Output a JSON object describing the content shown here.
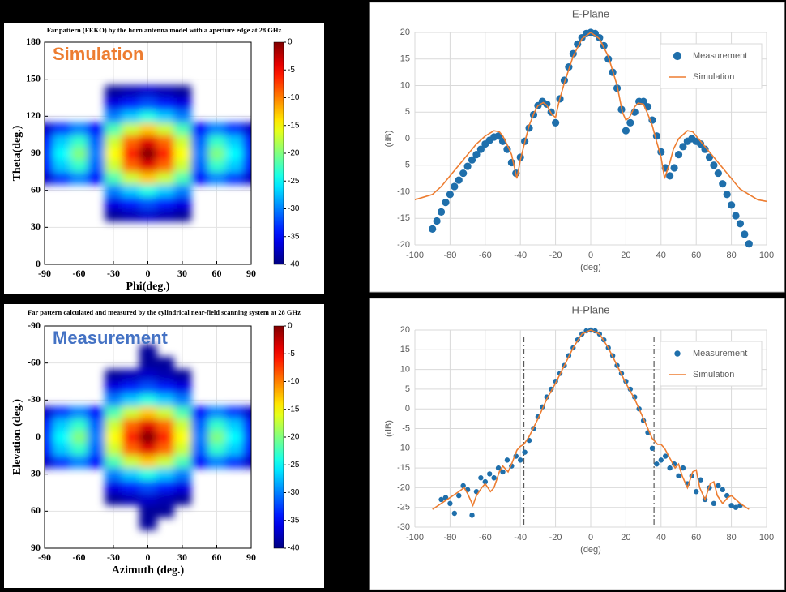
{
  "chart_data": [
    {
      "type": "heatmap",
      "title": "Far pattern (FEKO) by  the horn antenna model with a aperture edge at 28 GHz",
      "annotation": {
        "text": "Simulation",
        "color": "#ed7d31"
      },
      "xlabel": "Phi(deg.)",
      "ylabel": "Theta(deg.)",
      "x": [
        -90,
        -75,
        -60,
        -45,
        -30,
        -15,
        0,
        15,
        30,
        45,
        60,
        75,
        90
      ],
      "y": [
        30,
        40,
        50,
        60,
        70,
        80,
        90,
        100,
        110,
        120,
        130,
        140,
        150
      ],
      "z": [
        [
          null,
          null,
          null,
          null,
          null,
          null,
          null,
          null,
          null,
          null,
          null,
          null,
          null
        ],
        [
          null,
          null,
          null,
          null,
          -39,
          -38,
          -37,
          -38,
          -39,
          null,
          null,
          null,
          null
        ],
        [
          null,
          null,
          null,
          null,
          -36,
          -34,
          -32,
          -34,
          -36,
          null,
          null,
          null,
          null
        ],
        [
          null,
          null,
          null,
          null,
          -30,
          -27,
          -24,
          -27,
          -30,
          null,
          null,
          null,
          null
        ],
        [
          -37,
          -33,
          -30,
          -35,
          -22,
          -17,
          -13,
          -17,
          -22,
          -35,
          -30,
          -33,
          -37
        ],
        [
          -34,
          -27,
          -23,
          -31,
          -17,
          -9,
          -4,
          -9,
          -17,
          -31,
          -23,
          -27,
          -34
        ],
        [
          -33,
          -25,
          -20,
          -30,
          -15,
          -6,
          0,
          -6,
          -15,
          -30,
          -20,
          -25,
          -33
        ],
        [
          -34,
          -27,
          -23,
          -31,
          -17,
          -9,
          -4,
          -9,
          -17,
          -31,
          -23,
          -27,
          -34
        ],
        [
          -37,
          -33,
          -30,
          -35,
          -22,
          -17,
          -13,
          -17,
          -22,
          -35,
          -30,
          -33,
          -37
        ],
        [
          null,
          null,
          null,
          null,
          -30,
          -27,
          -24,
          -27,
          -30,
          null,
          null,
          null,
          null
        ],
        [
          null,
          null,
          null,
          null,
          -36,
          -34,
          -32,
          -34,
          -36,
          null,
          null,
          null,
          null
        ],
        [
          null,
          null,
          null,
          null,
          -39,
          -38,
          -37,
          -38,
          -39,
          null,
          null,
          null,
          null
        ],
        [
          null,
          null,
          null,
          null,
          null,
          null,
          null,
          null,
          null,
          null,
          null,
          null,
          null
        ]
      ],
      "xlim": [
        -90,
        90
      ],
      "ylim": [
        0,
        180
      ],
      "xticks": [
        -90,
        -60,
        -30,
        0,
        30,
        60,
        90
      ],
      "yticks": [
        0,
        30,
        60,
        90,
        120,
        150,
        180
      ],
      "zlim": [
        -40,
        0
      ],
      "colorbar_ticks": [
        0,
        -5,
        -10,
        -15,
        -20,
        -25,
        -30,
        -35,
        -40
      ],
      "colormap": "jet",
      "grid": true
    },
    {
      "type": "heatmap",
      "title": "Far pattern calculated and measured by the cylindrical near-field scanning system at 28 GHz",
      "annotation": {
        "text": "Measurement",
        "color": "#4472c4"
      },
      "xlabel": "Azimuth (deg.)",
      "ylabel": "Elevation (deg.)",
      "x": [
        -90,
        -75,
        -60,
        -45,
        -30,
        -15,
        0,
        15,
        30,
        45,
        60,
        75,
        90
      ],
      "y": [
        -80,
        -70,
        -60,
        -50,
        -40,
        -30,
        -20,
        -10,
        0,
        10,
        20,
        30,
        40,
        50,
        60,
        70,
        80
      ],
      "z": [
        [
          null,
          null,
          null,
          null,
          null,
          null,
          null,
          null,
          null,
          null,
          null,
          null,
          null
        ],
        [
          null,
          null,
          null,
          null,
          null,
          null,
          -39,
          null,
          null,
          null,
          null,
          null,
          null
        ],
        [
          null,
          null,
          null,
          null,
          null,
          null,
          -39,
          -39,
          null,
          null,
          null,
          null,
          null
        ],
        [
          null,
          null,
          null,
          null,
          -39,
          -38,
          -37,
          -38,
          -39,
          null,
          null,
          null,
          null
        ],
        [
          null,
          null,
          null,
          null,
          -36,
          -34,
          -32,
          -34,
          -36,
          null,
          null,
          null,
          null
        ],
        [
          null,
          null,
          null,
          null,
          -30,
          -27,
          -24,
          -27,
          -30,
          null,
          null,
          null,
          null
        ],
        [
          -37,
          -33,
          -30,
          -35,
          -22,
          -17,
          -13,
          -17,
          -22,
          -35,
          -30,
          -33,
          -37
        ],
        [
          -34,
          -27,
          -23,
          -31,
          -17,
          -9,
          -4,
          -9,
          -17,
          -31,
          -23,
          -27,
          -34
        ],
        [
          -33,
          -25,
          -20,
          -30,
          -15,
          -6,
          0,
          -6,
          -15,
          -30,
          -20,
          -25,
          -33
        ],
        [
          -34,
          -27,
          -23,
          -31,
          -17,
          -9,
          -4,
          -9,
          -17,
          -31,
          -23,
          -27,
          -34
        ],
        [
          -37,
          -33,
          -30,
          -35,
          -22,
          -17,
          -13,
          -17,
          -22,
          -35,
          -30,
          -33,
          -37
        ],
        [
          null,
          null,
          null,
          null,
          -30,
          -27,
          -24,
          -27,
          -30,
          null,
          null,
          null,
          null
        ],
        [
          null,
          null,
          null,
          null,
          -36,
          -34,
          -32,
          -34,
          -36,
          null,
          null,
          null,
          null
        ],
        [
          null,
          null,
          null,
          null,
          -39,
          -38,
          -37,
          -38,
          -39,
          null,
          null,
          null,
          null
        ],
        [
          null,
          null,
          null,
          null,
          null,
          null,
          -39,
          -39,
          null,
          null,
          null,
          null,
          null
        ],
        [
          null,
          null,
          null,
          null,
          null,
          null,
          -39,
          null,
          null,
          null,
          null,
          null,
          null
        ],
        [
          null,
          null,
          null,
          null,
          null,
          null,
          null,
          null,
          null,
          null,
          null,
          null,
          null
        ]
      ],
      "xlim": [
        -90,
        90
      ],
      "ylim": [
        90,
        -90
      ],
      "xticks": [
        -90,
        -60,
        -30,
        0,
        30,
        60,
        90
      ],
      "yticks": [
        -90,
        -60,
        -30,
        0,
        30,
        60,
        90
      ],
      "zlim": [
        -40,
        0
      ],
      "colorbar_ticks": [
        0,
        -5,
        -10,
        -15,
        -20,
        -25,
        -30,
        -35,
        -40
      ],
      "colormap": "jet",
      "grid": true
    },
    {
      "type": "line",
      "title": "E-Plane",
      "xlabel": "(deg)",
      "ylabel": "(dB)",
      "xlim": [
        -100,
        100
      ],
      "ylim": [
        -20,
        20
      ],
      "xticks": [
        -100,
        -80,
        -60,
        -40,
        -20,
        0,
        20,
        40,
        60,
        80,
        100
      ],
      "yticks": [
        -20,
        -15,
        -10,
        -5,
        0,
        5,
        10,
        15,
        20
      ],
      "grid": true,
      "legend": "upper right",
      "series": [
        {
          "name": "Measurement",
          "color": "#1f6fab",
          "style": "markers",
          "x": [
            -90,
            -87.5,
            -85,
            -82.5,
            -80,
            -77.5,
            -75,
            -72.5,
            -70,
            -67.5,
            -65,
            -62.5,
            -60,
            -57.5,
            -55,
            -52.5,
            -50,
            -47.5,
            -45,
            -42.5,
            -40,
            -37.5,
            -35,
            -32.5,
            -30,
            -27.5,
            -25,
            -22.5,
            -20,
            -17.5,
            -15,
            -12.5,
            -10,
            -7.5,
            -5,
            -2.5,
            0,
            2.5,
            5,
            7.5,
            10,
            12.5,
            15,
            17.5,
            20,
            22.5,
            25,
            27.5,
            30,
            32.5,
            35,
            37.5,
            40,
            42.5,
            45,
            47.5,
            50,
            52.5,
            55,
            57.5,
            60,
            62.5,
            65,
            67.5,
            70,
            72.5,
            75,
            77.5,
            80,
            82.5,
            85,
            87.5,
            90
          ],
          "values": [
            -17,
            -15.5,
            -13.8,
            -12,
            -10.5,
            -9,
            -7.8,
            -6.5,
            -5.2,
            -4,
            -3,
            -2,
            -1,
            -0.3,
            0.3,
            0.5,
            -0.5,
            -2,
            -4.5,
            -6.5,
            -3.5,
            -0.5,
            2,
            4.5,
            6.2,
            7,
            6.5,
            5,
            3,
            7.5,
            11,
            13.5,
            16,
            17.8,
            19,
            19.8,
            20,
            19.8,
            19,
            17.5,
            15,
            12.5,
            9.5,
            5.5,
            1.5,
            3,
            5,
            7,
            7,
            6,
            3.5,
            0.5,
            -2.5,
            -5.5,
            -7,
            -5.5,
            -3,
            -1.5,
            -0.5,
            0,
            -0.5,
            -1,
            -2,
            -3.5,
            -5,
            -6.5,
            -8.5,
            -10.5,
            -12.5,
            -14.5,
            -16,
            -18,
            -19.8
          ]
        },
        {
          "name": "Simulation",
          "color": "#ed7d31",
          "style": "line",
          "x": [
            -100,
            -95,
            -90,
            -85,
            -80,
            -75,
            -70,
            -65,
            -60,
            -55,
            -52,
            -50,
            -47,
            -45,
            -42,
            -40,
            -37,
            -35,
            -32,
            -30,
            -27,
            -25,
            -22,
            -20,
            -18,
            -15,
            -10,
            -5,
            0,
            5,
            10,
            15,
            18,
            20,
            22,
            25,
            27,
            30,
            32,
            35,
            37,
            40,
            42,
            45,
            47,
            50,
            55,
            58,
            60,
            65,
            70,
            75,
            80,
            85,
            90,
            95,
            100
          ],
          "values": [
            -11.5,
            -11,
            -10.5,
            -9,
            -7,
            -5,
            -3,
            -1,
            0.5,
            1.5,
            1.3,
            0.5,
            -1.5,
            -3,
            -7.5,
            -4,
            0,
            2.5,
            5,
            6.2,
            6.8,
            6.3,
            4.5,
            4,
            7,
            10.5,
            15.5,
            18.8,
            20,
            18.8,
            15.5,
            10,
            5,
            3.5,
            4,
            6,
            6.7,
            6.5,
            5,
            2.5,
            0,
            -3.5,
            -7.5,
            -4.5,
            -2,
            0,
            1.5,
            1.3,
            0.5,
            -1.5,
            -3.5,
            -5.5,
            -7.5,
            -9.5,
            -10.5,
            -11.5,
            -11.8
          ]
        }
      ]
    },
    {
      "type": "line",
      "title": "H-Plane",
      "xlabel": "(deg)",
      "ylabel": "(dB)",
      "xlim": [
        -100,
        100
      ],
      "ylim": [
        -30,
        20
      ],
      "xticks": [
        -100,
        -80,
        -60,
        -40,
        -20,
        0,
        20,
        40,
        60,
        80,
        100
      ],
      "yticks": [
        -30,
        -25,
        -20,
        -15,
        -10,
        -5,
        0,
        5,
        10,
        15,
        20
      ],
      "grid": true,
      "legend": "upper right",
      "vlines": [
        -38,
        36
      ],
      "series": [
        {
          "name": "Measurement",
          "color": "#1f6fab",
          "style": "markers",
          "x": [
            -85,
            -82.5,
            -80,
            -77.5,
            -75,
            -72.5,
            -70,
            -67.5,
            -65,
            -62.5,
            -60,
            -57.5,
            -55,
            -52.5,
            -50,
            -47.5,
            -45,
            -42.5,
            -40,
            -37.5,
            -35,
            -32.5,
            -30,
            -27.5,
            -25,
            -22.5,
            -20,
            -17.5,
            -15,
            -12.5,
            -10,
            -7.5,
            -5,
            -2.5,
            0,
            2.5,
            5,
            7.5,
            10,
            12.5,
            15,
            17.5,
            20,
            22.5,
            25,
            27.5,
            30,
            32.5,
            35,
            37.5,
            40,
            42.5,
            45,
            47.5,
            50,
            52.5,
            55,
            57.5,
            60,
            62.5,
            65,
            67.5,
            70,
            72.5,
            75,
            77.5,
            80,
            82.5,
            85
          ],
          "values": [
            -23,
            -22.5,
            -24,
            -26.5,
            -22,
            -19.5,
            -20.5,
            -27,
            -21,
            -17.5,
            -18.5,
            -16.5,
            -17.5,
            -15,
            -16,
            -13,
            -14.5,
            -12,
            -13,
            -11,
            -8,
            -5,
            -2,
            0.5,
            3,
            5,
            7,
            9,
            11,
            13.5,
            15.5,
            17.5,
            19,
            19.8,
            20,
            19.8,
            19,
            17.5,
            15.5,
            13.5,
            11,
            9,
            7,
            5,
            3,
            0,
            -3,
            -6,
            -10,
            -14,
            -13,
            -12,
            -15,
            -14,
            -17,
            -15,
            -19,
            -17,
            -21,
            -18,
            -23,
            -20,
            -24,
            -19.5,
            -20.5,
            -22,
            -24.5,
            -25,
            -24.5
          ]
        },
        {
          "name": "Simulation",
          "color": "#ed7d31",
          "style": "line",
          "x": [
            -90,
            -85,
            -80,
            -75,
            -72,
            -70,
            -67,
            -65,
            -62,
            -60,
            -57,
            -55,
            -52,
            -50,
            -47,
            -45,
            -42,
            -40,
            -38,
            -35,
            -30,
            -25,
            -20,
            -15,
            -10,
            -5,
            0,
            5,
            10,
            15,
            20,
            25,
            30,
            35,
            38,
            40,
            42,
            45,
            48,
            50,
            52,
            55,
            58,
            60,
            62,
            65,
            68,
            70,
            72,
            75,
            78,
            80,
            85,
            90
          ],
          "values": [
            -25.5,
            -24,
            -22.5,
            -21,
            -20,
            -21.5,
            -24.5,
            -22,
            -20,
            -19,
            -21,
            -20,
            -16,
            -14.5,
            -16,
            -14,
            -10.5,
            -9.5,
            -9,
            -7,
            -2.5,
            2.5,
            6.5,
            11,
            15.5,
            19,
            20,
            19,
            15.5,
            11,
            6.5,
            2.5,
            -2.5,
            -7.5,
            -9,
            -9,
            -10,
            -12.5,
            -15,
            -14,
            -17,
            -20,
            -16,
            -15.5,
            -20,
            -23,
            -19,
            -18.5,
            -22,
            -24,
            -22.5,
            -22,
            -24,
            -25.5
          ]
        }
      ]
    }
  ]
}
